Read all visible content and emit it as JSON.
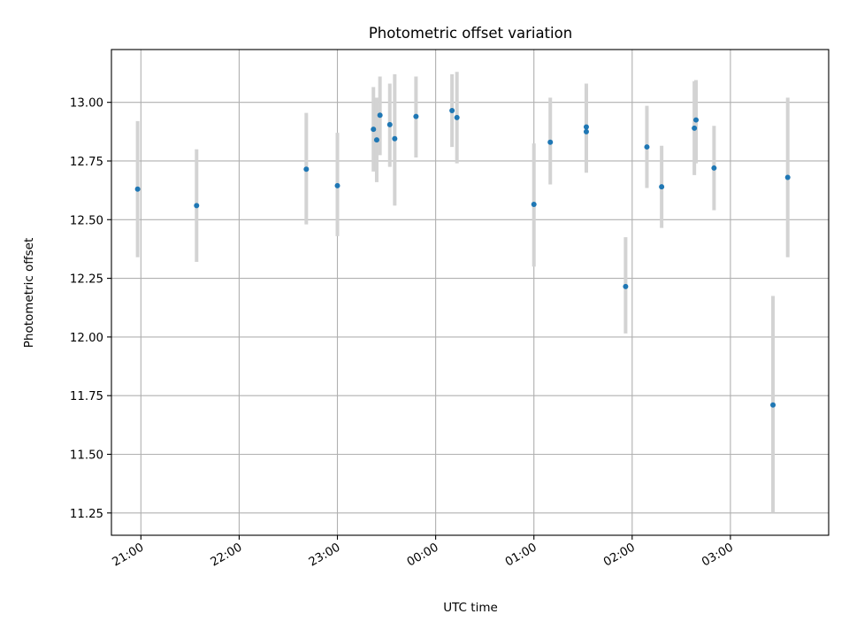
{
  "chart_data": {
    "type": "scatter",
    "title": "Photometric offset variation",
    "xlabel": "UTC time",
    "ylabel": "Photometric offset",
    "x_unit": "hours",
    "xlim": [
      "20:42",
      "04:00"
    ],
    "ylim": [
      11.155,
      13.225
    ],
    "xticks": [
      "21:00",
      "22:00",
      "23:00",
      "00:00",
      "01:00",
      "02:00",
      "03:00"
    ],
    "yticks": [
      "11.25",
      "11.50",
      "11.75",
      "12.00",
      "12.25",
      "12.50",
      "12.75",
      "13.00"
    ],
    "ytick_values": [
      11.25,
      11.5,
      11.75,
      12.0,
      12.25,
      12.5,
      12.75,
      13.0
    ],
    "grid": true,
    "point_color": "#1f77b4",
    "errorbar_color": "#d3d3d3",
    "points": [
      {
        "t": "20:58",
        "y": 12.63,
        "lo": 12.34,
        "hi": 12.92
      },
      {
        "t": "21:34",
        "y": 12.56,
        "lo": 12.32,
        "hi": 12.8
      },
      {
        "t": "22:41",
        "y": 12.715,
        "lo": 12.48,
        "hi": 12.955
      },
      {
        "t": "23:00",
        "y": 12.645,
        "lo": 12.43,
        "hi": 12.87
      },
      {
        "t": "23:22",
        "y": 12.885,
        "lo": 12.705,
        "hi": 13.065
      },
      {
        "t": "23:24",
        "y": 12.84,
        "lo": 12.66,
        "hi": 13.02
      },
      {
        "t": "23:26",
        "y": 12.945,
        "lo": 12.775,
        "hi": 13.11
      },
      {
        "t": "23:32",
        "y": 12.905,
        "lo": 12.725,
        "hi": 13.08
      },
      {
        "t": "23:35",
        "y": 12.845,
        "lo": 12.56,
        "hi": 13.12
      },
      {
        "t": "23:48",
        "y": 12.94,
        "lo": 12.765,
        "hi": 13.11
      },
      {
        "t": "00:10",
        "y": 12.965,
        "lo": 12.81,
        "hi": 13.12
      },
      {
        "t": "00:13",
        "y": 12.935,
        "lo": 12.74,
        "hi": 13.13
      },
      {
        "t": "01:00",
        "y": 12.565,
        "lo": 12.3,
        "hi": 12.825
      },
      {
        "t": "01:10",
        "y": 12.83,
        "lo": 12.65,
        "hi": 13.02
      },
      {
        "t": "01:32",
        "y": 12.895,
        "lo": 12.705,
        "hi": 13.08
      },
      {
        "t": "01:32",
        "y": 12.875,
        "lo": 12.7,
        "hi": 13.06
      },
      {
        "t": "01:56",
        "y": 12.215,
        "lo": 12.015,
        "hi": 12.425
      },
      {
        "t": "02:09",
        "y": 12.81,
        "lo": 12.635,
        "hi": 12.985
      },
      {
        "t": "02:18",
        "y": 12.64,
        "lo": 12.465,
        "hi": 12.815
      },
      {
        "t": "02:38",
        "y": 12.89,
        "lo": 12.69,
        "hi": 13.09
      },
      {
        "t": "02:39",
        "y": 12.925,
        "lo": 12.74,
        "hi": 13.095
      },
      {
        "t": "02:50",
        "y": 12.72,
        "lo": 12.54,
        "hi": 12.9
      },
      {
        "t": "03:26",
        "y": 11.71,
        "lo": 11.25,
        "hi": 12.175
      },
      {
        "t": "03:35",
        "y": 12.68,
        "lo": 12.34,
        "hi": 13.02
      }
    ]
  }
}
